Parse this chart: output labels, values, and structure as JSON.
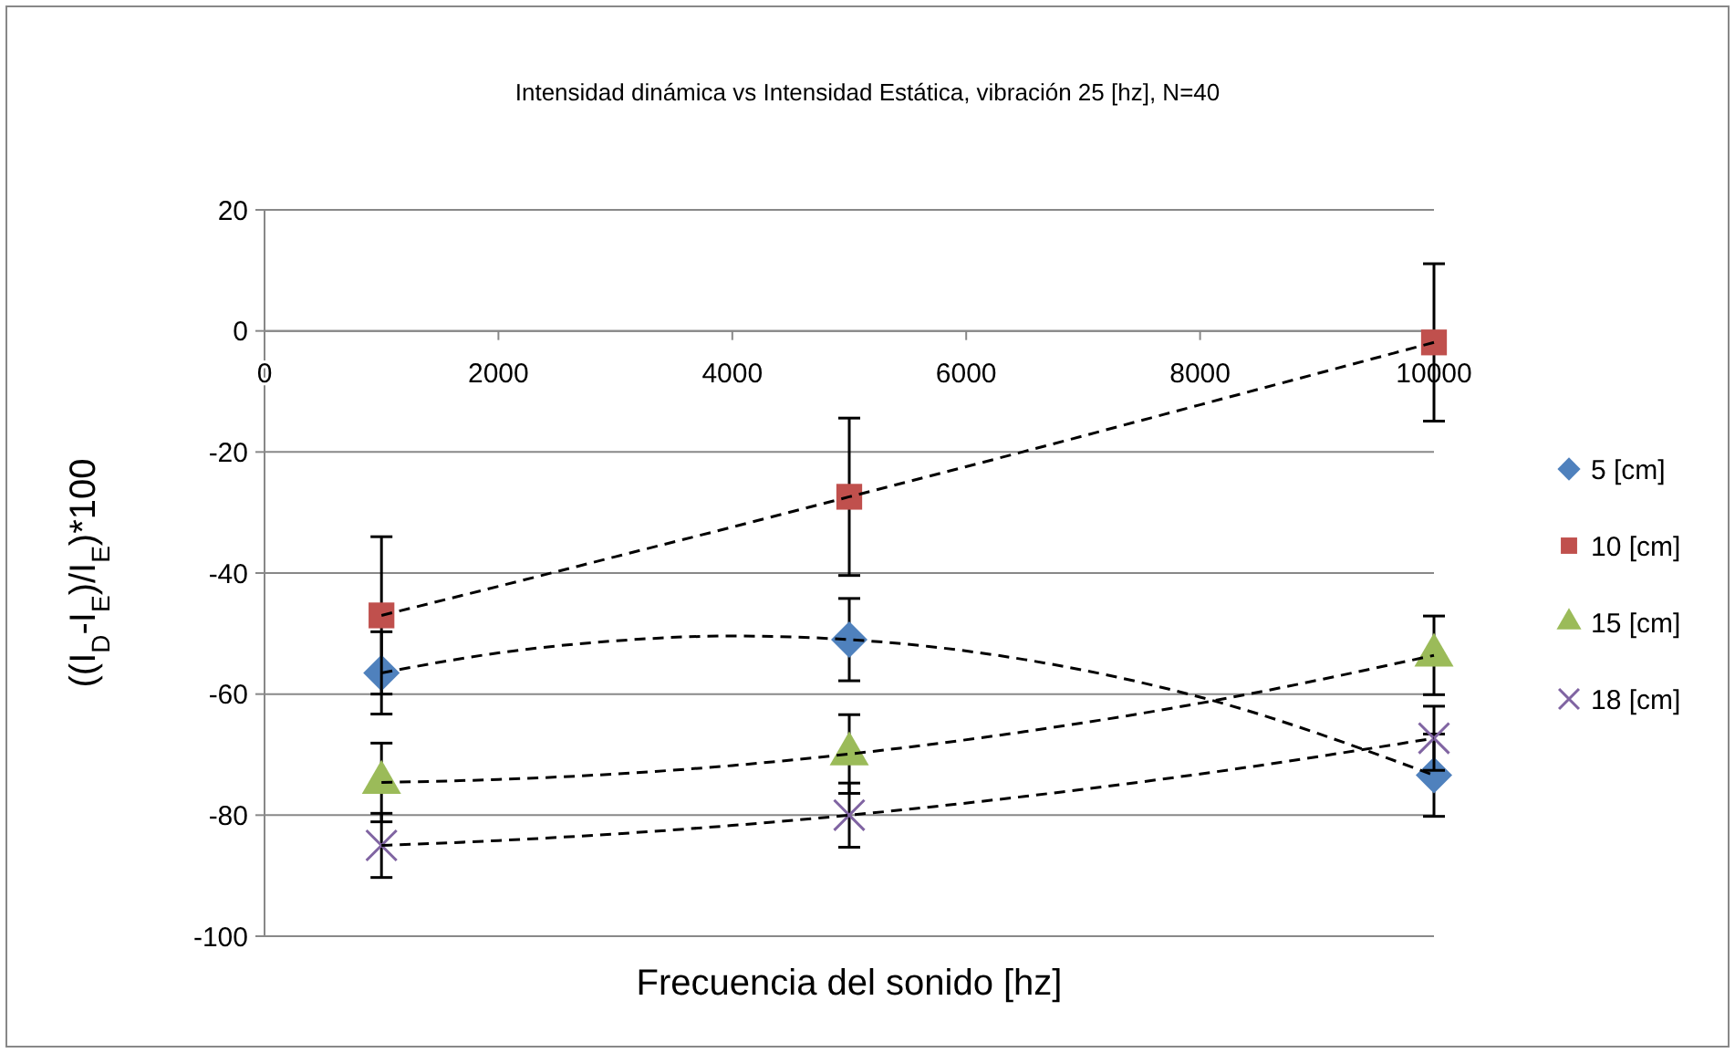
{
  "chart_data": {
    "type": "scatter",
    "title": "Intensidad dinámica vs Intensidad Estática, vibración 25 [hz], N=40",
    "xlabel": "Frecuencia del sonido [hz]",
    "ylabel": "((I$_{D}$-I$_{E}$)/I$_{E}$)*100",
    "xlim": [
      0,
      10000
    ],
    "xticks": [
      0,
      2000,
      4000,
      6000,
      8000,
      10000
    ],
    "ylim": [
      -100,
      20
    ],
    "yticks": [
      -100,
      -80,
      -60,
      -40,
      -20,
      0,
      20
    ],
    "grid": "y",
    "legend": "right",
    "series": [
      {
        "name": "5 [cm]",
        "color": "#4f81bd",
        "marker": "diamond",
        "x": [
          1000,
          5000,
          10000
        ],
        "values": [
          -56.5,
          -51.0,
          -73.4
        ],
        "errors": [
          6.8,
          6.8,
          6.8
        ]
      },
      {
        "name": "10 [cm]",
        "color": "#c0504d",
        "marker": "square",
        "x": [
          1000,
          5000,
          10000
        ],
        "values": [
          -47.0,
          -27.4,
          -1.9
        ],
        "errors": [
          13,
          13,
          13
        ]
      },
      {
        "name": "15 [cm]",
        "color": "#9bbb59",
        "marker": "triangle",
        "x": [
          1000,
          5000,
          10000
        ],
        "values": [
          -74.6,
          -69.9,
          -53.6
        ],
        "errors": [
          6.5,
          6.5,
          6.5
        ]
      },
      {
        "name": "18 [cm]",
        "color": "#8064a2",
        "marker": "cross",
        "x": [
          1000,
          5000,
          10000
        ],
        "values": [
          -85.0,
          -80.0,
          -67.3
        ],
        "errors": [
          5.3,
          5.3,
          5.3
        ]
      },
      {
        "type": "line",
        "color": "#000000",
        "line_style": "dashed",
        "marker": "none",
        "x": [
          1000,
          2000,
          3000,
          4000,
          5000,
          6500,
          8000,
          10000
        ],
        "values": [
          -56.5,
          -53.2,
          -51.2,
          -50.4,
          -51.0,
          -54.3,
          -60.5,
          -73.4
        ]
      },
      {
        "type": "line",
        "color": "#000000",
        "line_style": "dashed",
        "marker": "none",
        "x": [
          1000,
          2000,
          3000,
          4000,
          5000,
          6500,
          8000,
          10000
        ],
        "values": [
          -47.0,
          -42.2,
          -37.3,
          -32.4,
          -27.4,
          -19.9,
          -12.2,
          -1.9
        ]
      },
      {
        "type": "line",
        "color": "#000000",
        "line_style": "dashed",
        "marker": "none",
        "x": [
          1000,
          2000,
          3000,
          4000,
          5000,
          6500,
          8000,
          10000
        ],
        "values": [
          -74.6,
          -74.1,
          -73.2,
          -71.8,
          -69.9,
          -66.2,
          -61.5,
          -53.6
        ]
      },
      {
        "type": "line",
        "color": "#000000",
        "line_style": "dashed",
        "marker": "none",
        "x": [
          1000,
          2000,
          3000,
          4000,
          5000,
          6500,
          8000,
          10000
        ],
        "values": [
          -85.0,
          -84.2,
          -83.1,
          -81.7,
          -80.0,
          -76.9,
          -73.2,
          -67.3
        ]
      }
    ]
  }
}
